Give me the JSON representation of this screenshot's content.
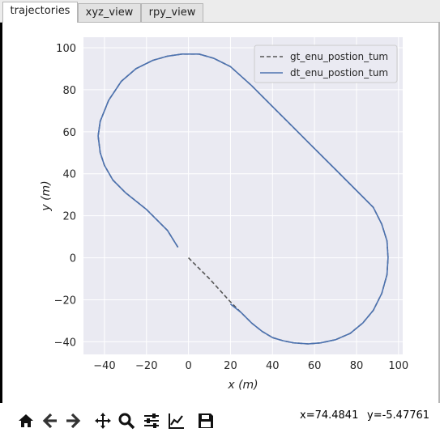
{
  "tabs": [
    {
      "label": "trajectories",
      "active": true
    },
    {
      "label": "xyz_view",
      "active": false
    },
    {
      "label": "rpy_view",
      "active": false
    }
  ],
  "chart_data": {
    "type": "line",
    "title": "",
    "xlabel": "x (m)",
    "ylabel": "y (m)",
    "xlim": [
      -50,
      102
    ],
    "ylim": [
      -46,
      105
    ],
    "xticks": [
      -40,
      -20,
      0,
      20,
      40,
      60,
      80,
      100
    ],
    "yticks": [
      -40,
      -20,
      0,
      20,
      40,
      60,
      80,
      100
    ],
    "grid": true,
    "background": "#eaeaf2",
    "legend_position": "top-right",
    "series": [
      {
        "name": "gt_enu_postion_tum",
        "style": "dashed",
        "color": "#555555",
        "points": [
          [
            0,
            0
          ],
          [
            10,
            -10
          ],
          [
            20,
            -21
          ],
          [
            25,
            -26
          ],
          [
            30,
            -31
          ],
          [
            35,
            -35
          ],
          [
            40,
            -38
          ],
          [
            45,
            -39.5
          ],
          [
            50,
            -40.5
          ],
          [
            57,
            -41
          ],
          [
            63,
            -40.5
          ],
          [
            70,
            -39
          ],
          [
            77,
            -36
          ],
          [
            83,
            -31
          ],
          [
            88,
            -25
          ],
          [
            92,
            -17
          ],
          [
            94.5,
            -8
          ],
          [
            95,
            0
          ],
          [
            94.5,
            8
          ],
          [
            92,
            16
          ],
          [
            88,
            24
          ],
          [
            80,
            32
          ],
          [
            70,
            42
          ],
          [
            60,
            52
          ],
          [
            50,
            62
          ],
          [
            40,
            72
          ],
          [
            30,
            82
          ],
          [
            20,
            91
          ],
          [
            12,
            95
          ],
          [
            5,
            97
          ],
          [
            -3,
            97
          ],
          [
            -10,
            96
          ],
          [
            -17,
            94
          ],
          [
            -25,
            90
          ],
          [
            -32,
            84
          ],
          [
            -38,
            75
          ],
          [
            -42,
            65
          ],
          [
            -43,
            58
          ],
          [
            -42,
            50
          ],
          [
            -40,
            44
          ],
          [
            -36,
            37
          ],
          [
            -30,
            31
          ],
          [
            -20,
            23
          ],
          [
            -10,
            13
          ],
          [
            -5,
            5
          ]
        ]
      },
      {
        "name": "dt_enu_postion_tum",
        "style": "solid",
        "color": "#4c72b0",
        "points": [
          [
            20,
            -22
          ],
          [
            25,
            -26
          ],
          [
            30,
            -31
          ],
          [
            35,
            -35
          ],
          [
            40,
            -38
          ],
          [
            45,
            -39.5
          ],
          [
            50,
            -40.5
          ],
          [
            57,
            -41
          ],
          [
            63,
            -40.5
          ],
          [
            70,
            -39
          ],
          [
            77,
            -36
          ],
          [
            83,
            -31
          ],
          [
            88,
            -25
          ],
          [
            92,
            -17
          ],
          [
            94.5,
            -8
          ],
          [
            95,
            0
          ],
          [
            94.5,
            8
          ],
          [
            92,
            16
          ],
          [
            88,
            24
          ],
          [
            80,
            32
          ],
          [
            70,
            42
          ],
          [
            60,
            52
          ],
          [
            50,
            62
          ],
          [
            40,
            72
          ],
          [
            30,
            82
          ],
          [
            20,
            91
          ],
          [
            12,
            95
          ],
          [
            5,
            97
          ],
          [
            -3,
            97
          ],
          [
            -10,
            96
          ],
          [
            -17,
            94
          ],
          [
            -25,
            90
          ],
          [
            -32,
            84
          ],
          [
            -38,
            75
          ],
          [
            -42,
            65
          ],
          [
            -43,
            58
          ],
          [
            -42,
            50
          ],
          [
            -40,
            44
          ],
          [
            -36,
            37
          ],
          [
            -30,
            31
          ],
          [
            -20,
            23
          ],
          [
            -10,
            13
          ],
          [
            -5,
            5
          ]
        ]
      }
    ]
  },
  "toolbar": {
    "buttons": [
      "home-icon",
      "back-icon",
      "forward-icon",
      "pan-icon",
      "zoom-icon",
      "configure-subplots-icon",
      "edit-axis-icon",
      "save-icon"
    ]
  },
  "status": {
    "x_readout": "x=74.4841",
    "y_readout": "y=-5.47761"
  }
}
